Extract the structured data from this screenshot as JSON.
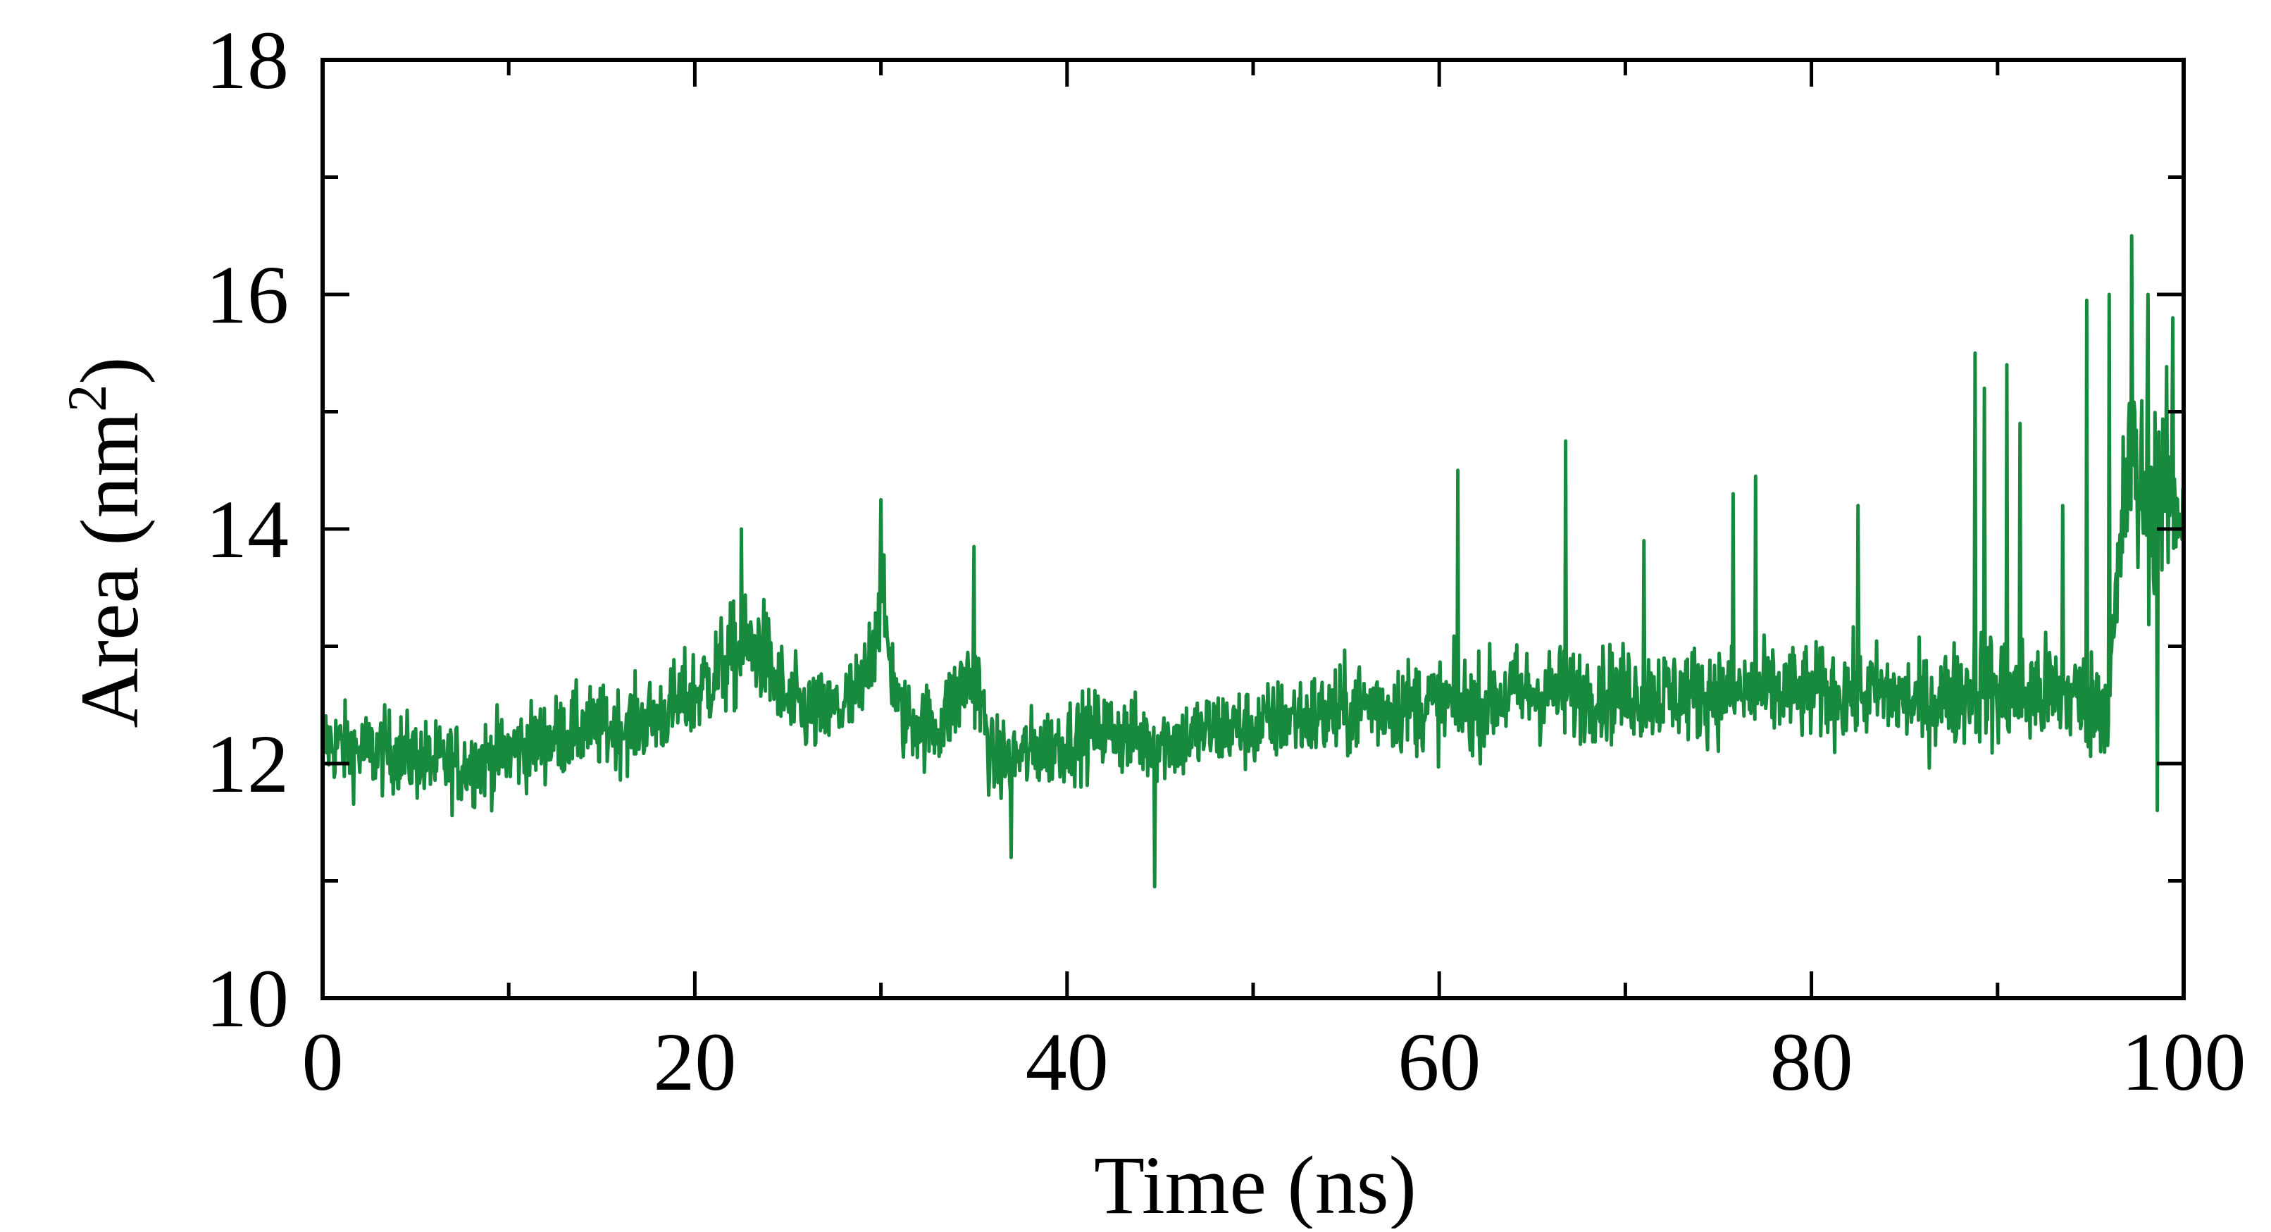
{
  "chart_data": {
    "type": "line",
    "title": "",
    "xlabel": "Time (ns)",
    "ylabel_main": "Area (nm",
    "ylabel_sup": "2",
    "ylabel_close": ")",
    "xlim": [
      0,
      100
    ],
    "ylim": [
      10,
      18
    ],
    "x_ticks": [
      0,
      20,
      40,
      60,
      80,
      100
    ],
    "x_tick_labels": [
      "0",
      "20",
      "40",
      "60",
      "80",
      "100"
    ],
    "y_ticks": [
      10,
      12,
      14,
      16,
      18
    ],
    "y_tick_labels": [
      "10",
      "12",
      "14",
      "16",
      "18"
    ],
    "x_minor_step": 10,
    "y_minor_step": 1,
    "grid": false,
    "legend": "none",
    "series": [
      {
        "color": "#178a3e",
        "x": [
          0,
          2,
          4,
          6,
          8,
          10,
          12,
          14,
          16,
          18,
          20,
          22,
          23.5,
          25,
          27,
          29,
          30,
          31,
          33,
          35,
          36,
          38,
          40,
          42,
          44,
          46,
          48,
          50,
          52,
          54,
          56,
          58,
          60,
          62,
          64,
          66,
          68,
          70,
          72,
          74,
          76,
          78,
          80,
          82,
          84,
          86,
          88,
          89,
          90,
          91,
          92,
          93,
          94,
          95,
          96,
          97,
          98,
          99,
          100
        ],
        "y": [
          12.2,
          12.1,
          12.1,
          12.0,
          12.0,
          12.1,
          12.2,
          12.3,
          12.3,
          12.4,
          12.6,
          12.9,
          13.0,
          12.5,
          12.4,
          12.6,
          13.4,
          12.4,
          12.3,
          12.8,
          12.0,
          12.1,
          12.2,
          12.3,
          12.2,
          12.2,
          12.3,
          12.3,
          12.4,
          12.4,
          12.5,
          12.5,
          12.5,
          12.5,
          12.6,
          12.6,
          12.6,
          12.6,
          12.6,
          12.6,
          12.6,
          12.6,
          12.6,
          12.6,
          12.6,
          12.5,
          12.6,
          12.7,
          12.6,
          12.6,
          12.6,
          12.6,
          12.6,
          12.5,
          12.6,
          14.5,
          14.3,
          14.3,
          14.2
        ],
        "noise": [
          0.35,
          0.35,
          0.35,
          0.35,
          0.35,
          0.35,
          0.35,
          0.35,
          0.35,
          0.35,
          0.4,
          0.45,
          0.45,
          0.4,
          0.35,
          0.4,
          0.45,
          0.35,
          0.35,
          0.45,
          0.35,
          0.35,
          0.35,
          0.35,
          0.35,
          0.35,
          0.35,
          0.35,
          0.35,
          0.4,
          0.4,
          0.4,
          0.4,
          0.4,
          0.4,
          0.4,
          0.4,
          0.4,
          0.4,
          0.4,
          0.4,
          0.4,
          0.4,
          0.4,
          0.4,
          0.4,
          0.45,
          0.5,
          0.5,
          0.5,
          0.5,
          0.45,
          0.45,
          0.45,
          0.5,
          0.9,
          0.9,
          0.8,
          0.8
        ],
        "spikes": [
          {
            "x": 22.5,
            "y": 14.0
          },
          {
            "x": 30.0,
            "y": 14.25
          },
          {
            "x": 35.0,
            "y": 13.85
          },
          {
            "x": 37.0,
            "y": 11.2
          },
          {
            "x": 44.7,
            "y": 10.95
          },
          {
            "x": 61.0,
            "y": 14.5
          },
          {
            "x": 66.8,
            "y": 14.75
          },
          {
            "x": 71.0,
            "y": 13.9
          },
          {
            "x": 75.8,
            "y": 14.3
          },
          {
            "x": 77.0,
            "y": 14.45
          },
          {
            "x": 82.5,
            "y": 14.2
          },
          {
            "x": 88.8,
            "y": 15.5
          },
          {
            "x": 89.3,
            "y": 15.2
          },
          {
            "x": 90.5,
            "y": 15.4
          },
          {
            "x": 91.2,
            "y": 14.9
          },
          {
            "x": 93.5,
            "y": 14.2
          },
          {
            "x": 94.8,
            "y": 15.95
          },
          {
            "x": 96.0,
            "y": 16.0
          },
          {
            "x": 97.2,
            "y": 16.5
          },
          {
            "x": 98.1,
            "y": 16.0
          },
          {
            "x": 99.4,
            "y": 15.8
          },
          {
            "x": 98.6,
            "y": 11.6
          }
        ]
      }
    ]
  }
}
